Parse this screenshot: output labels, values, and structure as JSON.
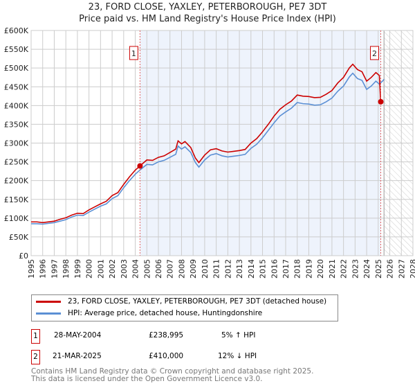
{
  "chart_data": {
    "type": "line",
    "title": "23, FORD CLOSE, YAXLEY, PETERBOROUGH, PE7 3DT",
    "subtitle": "Price paid vs. HM Land Registry's House Price Index (HPI)",
    "xlim": [
      1995,
      2028
    ],
    "ylim": [
      0,
      600000
    ],
    "x_ticks": [
      "1995",
      "1996",
      "1997",
      "1998",
      "1999",
      "2000",
      "2001",
      "2002",
      "2003",
      "2004",
      "2005",
      "2006",
      "2007",
      "2008",
      "2009",
      "2010",
      "2011",
      "2012",
      "2013",
      "2014",
      "2015",
      "2016",
      "2017",
      "2018",
      "2019",
      "2020",
      "2021",
      "2022",
      "2023",
      "2024",
      "2025",
      "2026",
      "2027",
      "2028"
    ],
    "y_ticks": [
      {
        "v": 0,
        "l": "£0"
      },
      {
        "v": 50000,
        "l": "£50K"
      },
      {
        "v": 100000,
        "l": "£100K"
      },
      {
        "v": 150000,
        "l": "£150K"
      },
      {
        "v": 200000,
        "l": "£200K"
      },
      {
        "v": 250000,
        "l": "£250K"
      },
      {
        "v": 300000,
        "l": "£300K"
      },
      {
        "v": 350000,
        "l": "£350K"
      },
      {
        "v": 400000,
        "l": "£400K"
      },
      {
        "v": 450000,
        "l": "£450K"
      },
      {
        "v": 500000,
        "l": "£500K"
      },
      {
        "v": 550000,
        "l": "£550K"
      },
      {
        "v": 600000,
        "l": "£600K"
      }
    ],
    "grid": true,
    "series": [
      {
        "name": "23, FORD CLOSE, YAXLEY, PETERBOROUGH, PE7 3DT (detached house)",
        "color": "#cc0000",
        "x": [
          1995,
          1995.5,
          1996,
          1997,
          1997.5,
          1998,
          1998.5,
          1999,
          1999.5,
          2000,
          2000.5,
          2001,
          2001.5,
          2002,
          2002.5,
          2003,
          2003.5,
          2004,
          2004.4,
          2005,
          2005.5,
          2006,
          2006.5,
          2007,
          2007.5,
          2007.7,
          2008,
          2008.3,
          2008.8,
          2009.2,
          2009.5,
          2010,
          2010.5,
          2011,
          2011.5,
          2012,
          2012.5,
          2013,
          2013.5,
          2014,
          2014.5,
          2015,
          2015.5,
          2016,
          2016.5,
          2017,
          2017.5,
          2018,
          2018.5,
          2019,
          2019.5,
          2020,
          2020.5,
          2021,
          2021.5,
          2022,
          2022.5,
          2022.8,
          2023.2,
          2023.6,
          2024,
          2024.4,
          2024.8,
          2025.1,
          2025.21,
          2025.4
        ],
        "y": [
          90000,
          90000,
          88000,
          92000,
          97000,
          101000,
          108000,
          113000,
          112000,
          122000,
          130000,
          138000,
          145000,
          160000,
          168000,
          190000,
          210000,
          228000,
          238995,
          255000,
          254000,
          262000,
          266000,
          275000,
          284000,
          306000,
          298000,
          304000,
          288000,
          260000,
          248000,
          268000,
          282000,
          285000,
          279000,
          276000,
          278000,
          280000,
          283000,
          300000,
          312000,
          330000,
          350000,
          372000,
          390000,
          402000,
          412000,
          428000,
          425000,
          424000,
          421000,
          422000,
          430000,
          440000,
          460000,
          475000,
          500000,
          510000,
          496000,
          490000,
          465000,
          475000,
          488000,
          480000,
          410000,
          415000
        ]
      },
      {
        "name": "HPI: Average price, detached house, Huntingdonshire",
        "color": "#5b8fd4",
        "x": [
          1995,
          1995.5,
          1996,
          1997,
          1997.5,
          1998,
          1998.5,
          1999,
          1999.5,
          2000,
          2000.5,
          2001,
          2001.5,
          2002,
          2002.5,
          2003,
          2003.5,
          2004,
          2004.4,
          2005,
          2005.5,
          2006,
          2006.5,
          2007,
          2007.5,
          2007.7,
          2008,
          2008.3,
          2008.8,
          2009.2,
          2009.5,
          2010,
          2010.5,
          2011,
          2011.5,
          2012,
          2012.5,
          2013,
          2013.5,
          2014,
          2014.5,
          2015,
          2015.5,
          2016,
          2016.5,
          2017,
          2017.5,
          2018,
          2018.5,
          2019,
          2019.5,
          2020,
          2020.5,
          2021,
          2021.5,
          2022,
          2022.5,
          2022.8,
          2023.2,
          2023.6,
          2024,
          2024.4,
          2024.8,
          2025.1,
          2025.4,
          2025.5
        ],
        "y": [
          85000,
          85000,
          84000,
          88000,
          92000,
          96000,
          103000,
          108000,
          107000,
          116000,
          124000,
          132000,
          138000,
          152000,
          160000,
          181000,
          200000,
          217000,
          228000,
          243000,
          242000,
          250000,
          254000,
          262000,
          270000,
          292000,
          284000,
          290000,
          275000,
          248000,
          236000,
          255000,
          268000,
          272000,
          266000,
          263000,
          265000,
          267000,
          270000,
          286000,
          297000,
          314000,
          334000,
          354000,
          372000,
          383000,
          393000,
          408000,
          405000,
          404000,
          401000,
          402000,
          410000,
          420000,
          438000,
          452000,
          476000,
          486000,
          472000,
          467000,
          443000,
          452000,
          465000,
          457000,
          466000,
          470000
        ]
      }
    ],
    "sales": [
      {
        "n": "1",
        "x": 2004.41,
        "y": 238995,
        "date": "28-MAY-2004",
        "price": "£238,995",
        "hpi": "5% ↑ HPI"
      },
      {
        "n": "2",
        "x": 2025.22,
        "y": 410000,
        "date": "21-MAR-2025",
        "price": "£410,000",
        "hpi": "12% ↓ HPI"
      }
    ],
    "forecast_from": 2025.5,
    "legend_placement": "below"
  },
  "footer": {
    "line1": "Contains HM Land Registry data © Crown copyright and database right 2025.",
    "line2": "This data is licensed under the Open Government Licence v3.0."
  }
}
